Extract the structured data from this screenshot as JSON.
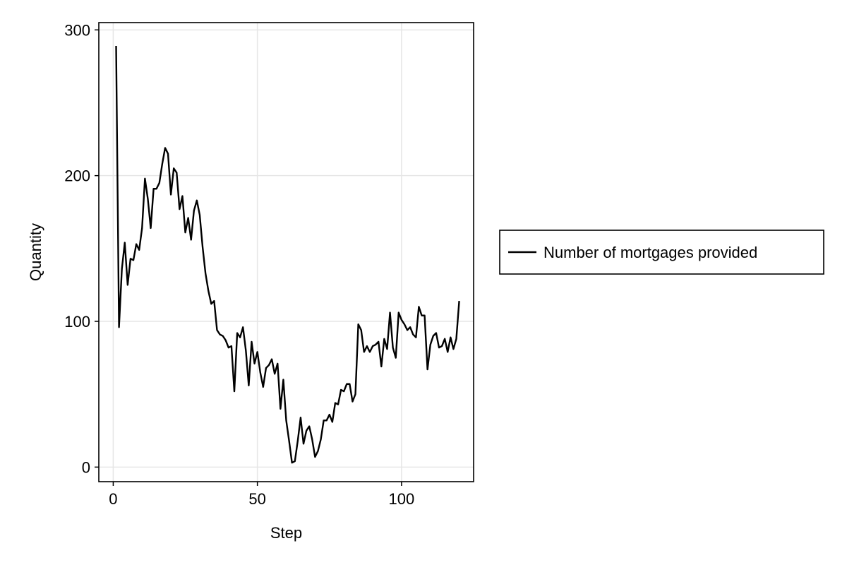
{
  "chart_data": {
    "type": "line",
    "title": "",
    "xlabel": "Step",
    "ylabel": "Quantity",
    "xlim": [
      -5,
      125
    ],
    "ylim": [
      -10,
      305
    ],
    "xticks": [
      0,
      50,
      100
    ],
    "yticks": [
      0,
      100,
      200,
      300
    ],
    "xtick_labels": [
      "0",
      "50",
      "100"
    ],
    "ytick_labels": [
      "0",
      "100",
      "200",
      "300"
    ],
    "grid": true,
    "legend_position": "right",
    "colors": {
      "line": "#000000",
      "grid": "#e6e6e6",
      "frame": "#000000"
    },
    "series": [
      {
        "name": "Number of mortgages provided",
        "x": [
          1,
          2,
          3,
          4,
          5,
          6,
          7,
          8,
          9,
          10,
          11,
          12,
          13,
          14,
          15,
          16,
          17,
          18,
          19,
          20,
          21,
          22,
          23,
          24,
          25,
          26,
          27,
          28,
          29,
          30,
          31,
          32,
          33,
          34,
          35,
          36,
          37,
          38,
          39,
          40,
          41,
          42,
          43,
          44,
          45,
          46,
          47,
          48,
          49,
          50,
          51,
          52,
          53,
          54,
          55,
          56,
          57,
          58,
          59,
          60,
          61,
          62,
          63,
          64,
          65,
          66,
          67,
          68,
          69,
          70,
          71,
          72,
          73,
          74,
          75,
          76,
          77,
          78,
          79,
          80,
          81,
          82,
          83,
          84,
          85,
          86,
          87,
          88,
          89,
          90,
          91,
          92,
          93,
          94,
          95,
          96,
          97,
          98,
          99,
          100,
          101,
          102,
          103,
          104,
          105,
          106,
          107,
          108,
          109,
          110,
          111,
          112,
          113,
          114,
          115,
          116,
          117,
          118,
          119,
          120
        ],
        "y": [
          289,
          96,
          136,
          154,
          125,
          143,
          142,
          153,
          149,
          164,
          198,
          184,
          164,
          191,
          191,
          195,
          208,
          219,
          215,
          187,
          205,
          202,
          177,
          186,
          161,
          171,
          156,
          176,
          183,
          173,
          151,
          133,
          121,
          112,
          114,
          94,
          91,
          90,
          87,
          82,
          83,
          52,
          92,
          89,
          96,
          80,
          56,
          86,
          71,
          79,
          65,
          55,
          68,
          70,
          74,
          64,
          71,
          40,
          60,
          32,
          18,
          3,
          4,
          18,
          34,
          16,
          25,
          28,
          19,
          7,
          11,
          19,
          32,
          32,
          36,
          31,
          44,
          43,
          53,
          52,
          57,
          57,
          45,
          50,
          98,
          94,
          79,
          83,
          79,
          83,
          84,
          86,
          69,
          88,
          81,
          106,
          82,
          75,
          106,
          101,
          98,
          94,
          96,
          91,
          89,
          110,
          104,
          104,
          67,
          84,
          90,
          92,
          82,
          83,
          88,
          79,
          89,
          81,
          88,
          114
        ]
      }
    ]
  }
}
